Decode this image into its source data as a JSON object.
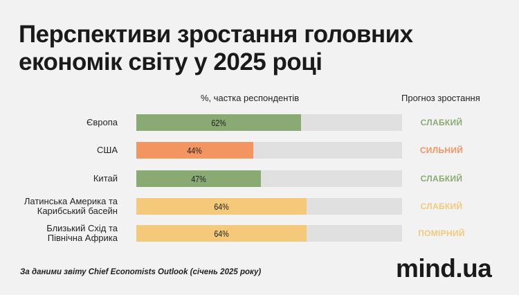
{
  "title": "Перспективи зростання головних економік світу у 2025 році",
  "header_left": "%, частка респондентів",
  "header_right": "Прогноз зростання",
  "footnote": "За даними звіту Chief Economists Outlook (січень 2025 року)",
  "logo": "mind.ua",
  "colors": {
    "green": "#8aaa73",
    "orange": "#f39560",
    "yellow": "#f4c97a",
    "track": "#e0e0e0"
  },
  "chart_data": {
    "type": "bar",
    "orientation": "horizontal",
    "xlim": [
      0,
      100
    ],
    "value_suffix": "%",
    "categories": [
      "Європа",
      "США",
      "Китай",
      "Латинська Америка та\nКарибський басейн",
      "Близький Схід та\nПівнічна Африка"
    ],
    "values": [
      62,
      44,
      47,
      64,
      64
    ],
    "value_labels": [
      "62%",
      "44%",
      "47%",
      "64%",
      "64%"
    ],
    "forecast": [
      "СЛАБКИЙ",
      "СИЛЬНИЙ",
      "СЛАБКИЙ",
      "СЛАБКИЙ",
      "ПОМІРНИЙ"
    ],
    "bar_colors": [
      "#8aaa73",
      "#f39560",
      "#8aaa73",
      "#f4c97a",
      "#f4c97a"
    ],
    "forecast_colors": [
      "#8aaa73",
      "#f39560",
      "#8aaa73",
      "#f4c97a",
      "#f4c97a"
    ]
  }
}
